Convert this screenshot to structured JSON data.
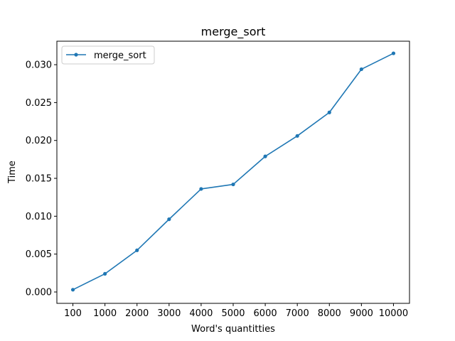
{
  "chart_data": {
    "type": "line",
    "title": "merge_sort",
    "xlabel": "Word's quantitties",
    "ylabel": "Time",
    "categories": [
      "100",
      "1000",
      "2000",
      "3000",
      "4000",
      "5000",
      "6000",
      "7000",
      "8000",
      "9000",
      "10000"
    ],
    "series": [
      {
        "name": "merge_sort",
        "color": "#1f77b4",
        "marker": "dot",
        "values": [
          0.0003,
          0.0024,
          0.0055,
          0.0096,
          0.0136,
          0.0142,
          0.0179,
          0.0206,
          0.0237,
          0.0294,
          0.0315
        ]
      }
    ],
    "ylim": [
      -0.0015,
      0.0331
    ],
    "yticks": [
      "0.000",
      "0.005",
      "0.010",
      "0.015",
      "0.020",
      "0.025",
      "0.030"
    ],
    "ytick_values": [
      0.0,
      0.005,
      0.01,
      0.015,
      0.02,
      0.025,
      0.03
    ],
    "grid": false,
    "legend_position": "upper left"
  }
}
